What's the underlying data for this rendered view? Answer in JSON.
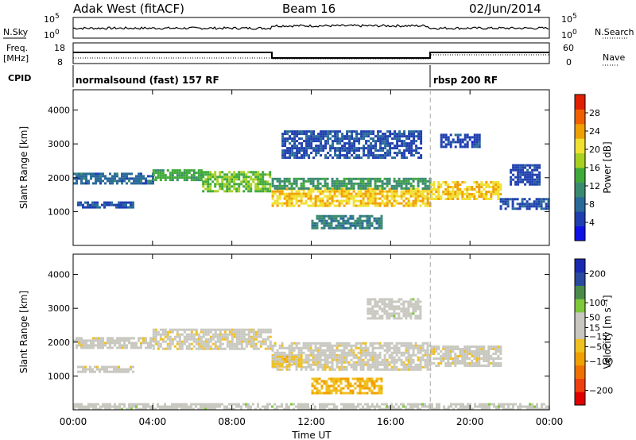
{
  "header": {
    "site": "Adak West (fitACF)",
    "beam": "Beam 16",
    "date": "02/Jun/2014"
  },
  "labels": {
    "nsky": "N.Sky",
    "nsearch": "N.Search",
    "freq_top": "Freq.",
    "freq_unit": "[MHz]",
    "nave": "Nave",
    "cpid": "CPID",
    "sky_top": "10^5",
    "sky_bottom": "10^0",
    "search_top": "10^5",
    "search_bottom": "10^0",
    "freq_hi": "18",
    "freq_lo": "8",
    "nave_hi": "60",
    "nave_lo": "0",
    "cpid_1": "normalsound (fast) 157 RF",
    "cpid_2": "rbsp 200 RF"
  },
  "colors": {
    "power": [
      "#1010e8",
      "#1f3fb0",
      "#2a6a9a",
      "#3a8a70",
      "#3faa3a",
      "#a8d020",
      "#f0e030",
      "#f0a000",
      "#f06000",
      "#e02000"
    ],
    "velocity": [
      "#e00000",
      "#f04010",
      "#f07000",
      "#f0a000",
      "#f0c020",
      "#c8c8c0",
      "#c8c8c0",
      "#7ec83a",
      "#4a8a4a",
      "#2a4aa0",
      "#1a2ab0"
    ]
  },
  "chart_data": [
    {
      "type": "heatmap",
      "title": "Power",
      "ylabel": "Slant Range [km]",
      "xlabel": "Time UT",
      "x_ticks": [
        "00:00",
        "04:00",
        "08:00",
        "12:00",
        "16:00",
        "20:00",
        "00:00"
      ],
      "y_ticks": [
        1000,
        2000,
        3000,
        4000
      ],
      "xlim_hours": [
        0,
        24
      ],
      "ylim_km": [
        0,
        4600
      ],
      "colorbar": {
        "label": "Power [dB]",
        "ticks": [
          4,
          8,
          12,
          16,
          20,
          24,
          28
        ],
        "range": [
          0,
          32
        ]
      },
      "bands": [
        {
          "t0": 0.0,
          "t1": 4.0,
          "r0": 1850,
          "r1": 2150,
          "value": 8
        },
        {
          "t0": 0.2,
          "t1": 3.0,
          "r0": 1150,
          "r1": 1300,
          "value": 6
        },
        {
          "t0": 4.0,
          "t1": 6.5,
          "r0": 1950,
          "r1": 2250,
          "value": 14
        },
        {
          "t0": 6.5,
          "t1": 9.9,
          "r0": 1600,
          "r1": 2200,
          "value": 16
        },
        {
          "t0": 10.0,
          "t1": 18.0,
          "r0": 1200,
          "r1": 1700,
          "value": 22
        },
        {
          "t0": 10.0,
          "t1": 18.0,
          "r0": 1700,
          "r1": 2000,
          "value": 12
        },
        {
          "t0": 10.5,
          "t1": 17.5,
          "r0": 2600,
          "r1": 3400,
          "value": 6
        },
        {
          "t0": 12.0,
          "t1": 15.5,
          "r0": 500,
          "r1": 900,
          "value": 10
        },
        {
          "t0": 18.0,
          "t1": 21.5,
          "r0": 1400,
          "r1": 1900,
          "value": 22
        },
        {
          "t0": 21.5,
          "t1": 24.0,
          "r0": 1100,
          "r1": 1400,
          "value": 6
        },
        {
          "t0": 18.5,
          "t1": 20.5,
          "r0": 2900,
          "r1": 3300,
          "value": 5
        },
        {
          "t0": 22.0,
          "t1": 23.5,
          "r0": 1800,
          "r1": 2400,
          "value": 5
        }
      ]
    },
    {
      "type": "heatmap",
      "title": "Velocity",
      "ylabel": "Slant Range [km]",
      "xlabel": "Time UT",
      "x_ticks": [
        "00:00",
        "04:00",
        "08:00",
        "12:00",
        "16:00",
        "20:00",
        "00:00"
      ],
      "y_ticks": [
        1000,
        2000,
        3000,
        4000
      ],
      "xlim_hours": [
        0,
        24
      ],
      "ylim_km": [
        0,
        4600
      ],
      "colorbar": {
        "label": "Velocity [m s⁻¹]",
        "ticks": [
          200,
          100,
          50,
          15,
          -15,
          -50,
          -100,
          -200
        ],
        "range": [
          -250,
          250
        ]
      },
      "bands": [
        {
          "t0": 0.0,
          "t1": 4.0,
          "r0": 1850,
          "r1": 2150,
          "value": 0
        },
        {
          "t0": 0.2,
          "t1": 3.0,
          "r0": 1150,
          "r1": 1300,
          "value": 0
        },
        {
          "t0": 4.0,
          "t1": 9.9,
          "r0": 1800,
          "r1": 2400,
          "value": 0
        },
        {
          "t0": 10.0,
          "t1": 18.0,
          "r0": 1200,
          "r1": 2000,
          "value": 0
        },
        {
          "t0": 10.0,
          "t1": 11.5,
          "r0": 1300,
          "r1": 1600,
          "value": -40
        },
        {
          "t0": 14.8,
          "t1": 17.5,
          "r0": 2700,
          "r1": 3300,
          "value": 40
        },
        {
          "t0": 12.0,
          "t1": 15.5,
          "r0": 500,
          "r1": 950,
          "value": -60
        },
        {
          "t0": 18.0,
          "t1": 21.5,
          "r0": 1300,
          "r1": 1900,
          "value": 0
        },
        {
          "t0": 0.0,
          "t1": 24.0,
          "r0": 50,
          "r1": 200,
          "value": 40
        }
      ]
    }
  ]
}
